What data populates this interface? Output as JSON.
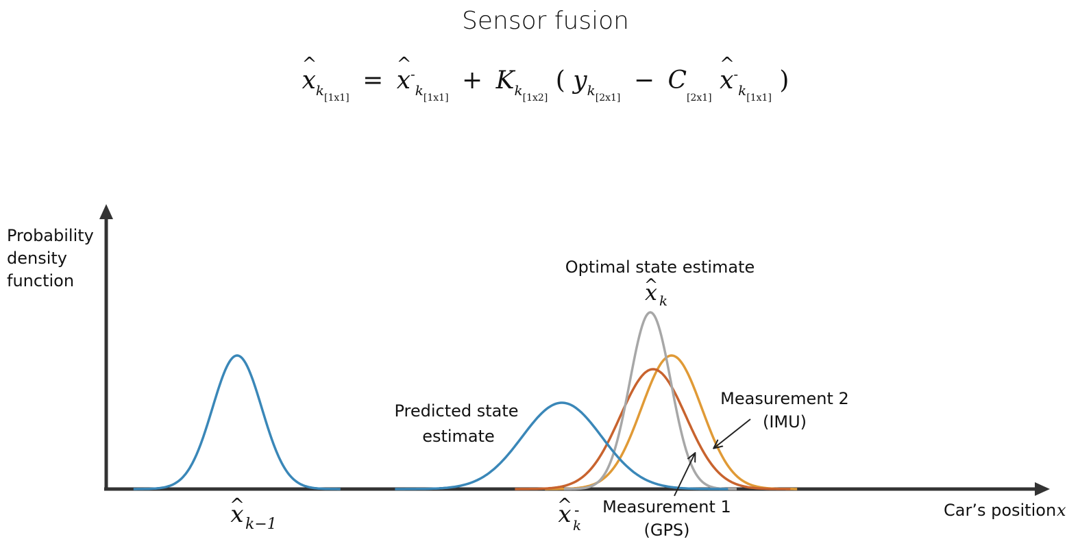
{
  "title": "Sensor fusion",
  "equation": {
    "lhs": "x",
    "lhs_sub": "k",
    "lhs_dim": "[1x1]",
    "eq": "=",
    "xpred": "x",
    "xpred_sup": "-",
    "xpred_sub": "k",
    "xpred_dim": "[1x1]",
    "plus": "+",
    "gain": "K",
    "gain_sub": "k",
    "gain_dim": "[1x2]",
    "open_paren": "(",
    "meas": "y",
    "meas_sub": "k",
    "meas_dim": "[2x1]",
    "minus": "−",
    "c": "C",
    "c_dim": "[2x1]",
    "xpred2": "x",
    "xpred2_sup": "-",
    "xpred2_sub": "k",
    "xpred2_dim": "[1x1]",
    "close_paren": ")"
  },
  "axes": {
    "y_label": [
      "Probability",
      "density",
      "function"
    ],
    "x_label": "Car’s position",
    "x_label_var": "x"
  },
  "curves": [
    {
      "id": "previous-estimate",
      "mean": 346,
      "peak": 195,
      "sigma": 36,
      "color": "#3a87b8"
    },
    {
      "id": "predicted-estimate",
      "mean": 820,
      "peak": 126,
      "sigma": 58,
      "color": "#3a87b8"
    },
    {
      "id": "optimal-estimate",
      "mean": 949,
      "peak": 258,
      "sigma": 30,
      "color": "#a7a7a7"
    },
    {
      "id": "measurement-1",
      "mean": 953,
      "peak": 175,
      "sigma": 48,
      "color": "#c8632e"
    },
    {
      "id": "measurement-2",
      "mean": 980,
      "peak": 195,
      "sigma": 44,
      "color": "#e09a36"
    }
  ],
  "labels": {
    "optimal": "Optimal state estimate",
    "predicted": [
      "Predicted state",
      "estimate"
    ],
    "measurement2": [
      "Measurement 2",
      "(IMU)"
    ],
    "measurement1": [
      "Measurement 1",
      "(GPS)"
    ]
  },
  "math_labels": {
    "x_hat_k": {
      "base": "x",
      "sub": "k"
    },
    "x_hat_k_minus_1": {
      "base": "x",
      "sub": "k−1"
    },
    "x_hat_k_pred": {
      "base": "x",
      "sup": "-",
      "sub": "k"
    }
  }
}
